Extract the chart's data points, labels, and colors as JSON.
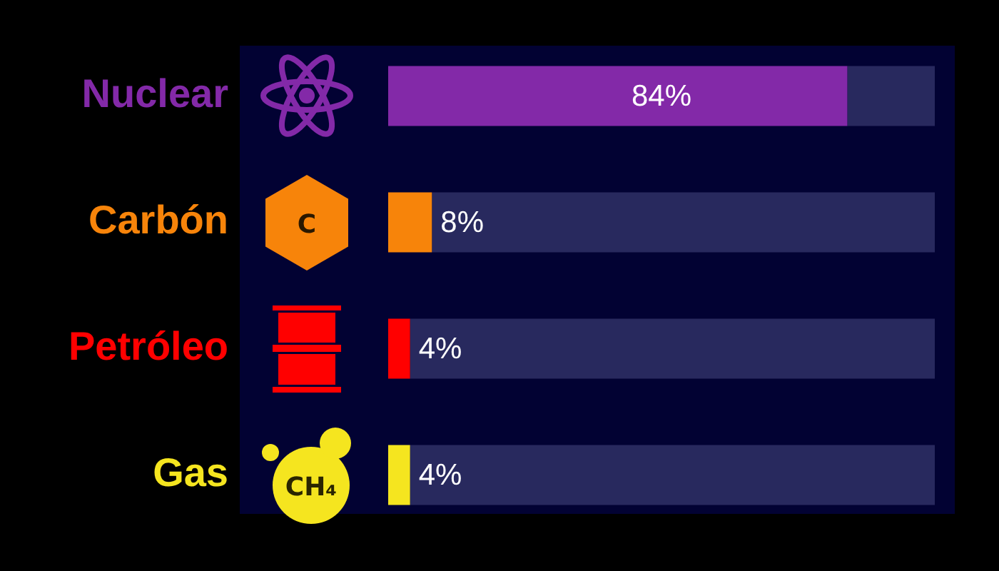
{
  "chart_data": {
    "type": "bar",
    "orientation": "horizontal",
    "stacked": true,
    "categories": [
      "Nuclear",
      "Carbón",
      "Petróleo",
      "Gas"
    ],
    "series": [
      {
        "colors": [
          "#8329a8",
          "#f7840a",
          "#ff0000",
          "#f5e51f"
        ],
        "values": [
          84,
          8,
          4,
          4
        ],
        "value_labels": [
          "84%",
          "8%",
          "4%",
          "4%"
        ]
      },
      {
        "color": "#28295e",
        "values": [
          16,
          92,
          96,
          96
        ]
      }
    ],
    "xlim": [
      0,
      100
    ],
    "tick_labels": "y",
    "grid": false,
    "legend": false,
    "annotations": [
      "C",
      "CH₄"
    ]
  }
}
